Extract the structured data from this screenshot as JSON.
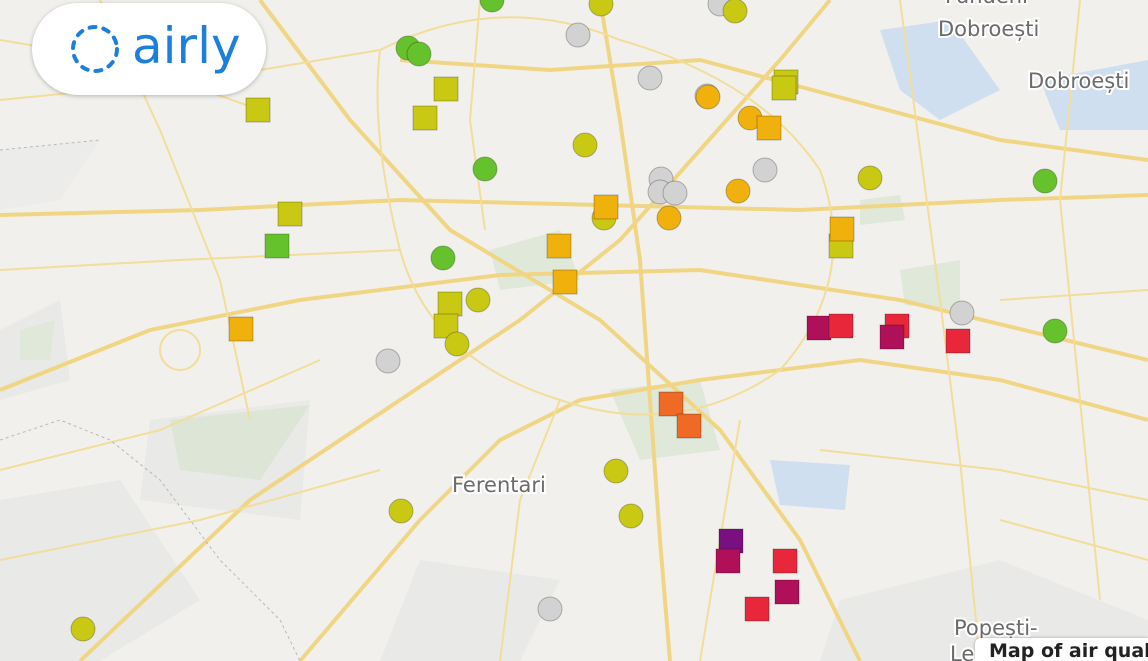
{
  "logo": {
    "text": "airly"
  },
  "places": [
    {
      "label": "Fundeni"
    },
    {
      "label": "Dobroești"
    },
    {
      "label": "Dobroești"
    },
    {
      "label": "Ferentari"
    },
    {
      "label": "Popești-"
    },
    {
      "label": "Leordeni"
    }
  ],
  "caption": "Map of air quality"
}
